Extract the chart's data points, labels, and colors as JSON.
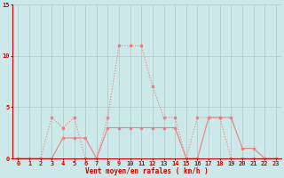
{
  "xlabel": "Vent moyen/en rafales ( km/h )",
  "x": [
    0,
    1,
    2,
    3,
    4,
    5,
    6,
    7,
    8,
    9,
    10,
    11,
    12,
    13,
    14,
    15,
    16,
    17,
    18,
    19,
    20,
    21,
    22,
    23
  ],
  "line1": [
    0,
    0,
    0,
    4,
    3,
    4,
    0,
    0,
    4,
    11,
    11,
    11,
    7,
    4,
    4,
    0,
    4,
    4,
    4,
    0,
    0,
    0,
    0,
    0
  ],
  "line2": [
    0,
    0,
    0,
    0,
    2,
    2,
    2,
    0,
    3,
    3,
    3,
    3,
    3,
    3,
    3,
    0,
    0,
    4,
    4,
    4,
    1,
    1,
    0,
    0
  ],
  "bg_color": "#cce8e8",
  "line_color": "#f08080",
  "grid_color": "#aac8c8",
  "axis_color": "#cc0000",
  "tick_color": "#cc0000",
  "label_color": "#cc0000",
  "ylim": [
    0,
    15
  ],
  "xlim": [
    -0.5,
    23.5
  ],
  "yticks": [
    0,
    5,
    10,
    15
  ],
  "xticks": [
    0,
    1,
    2,
    3,
    4,
    5,
    6,
    7,
    8,
    9,
    10,
    11,
    12,
    13,
    14,
    15,
    16,
    17,
    18,
    19,
    20,
    21,
    22,
    23
  ]
}
